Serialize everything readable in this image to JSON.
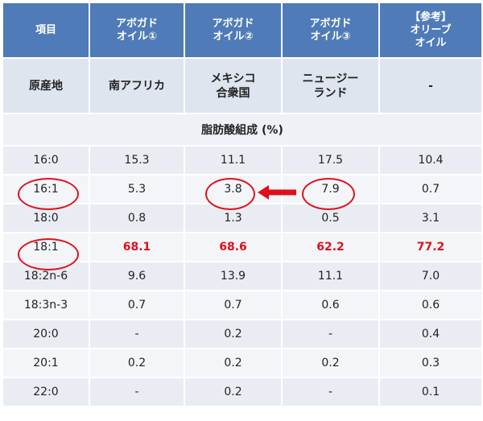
{
  "headers": {
    "item": "項目",
    "c1": [
      "アボガド",
      "オイル①"
    ],
    "c2": [
      "アボガド",
      "オイル②"
    ],
    "c3": [
      "アボガド",
      "オイル③"
    ],
    "c4": [
      "【参考】",
      "オリーブ",
      "オイル"
    ]
  },
  "origin": {
    "label": "原産地",
    "c1": "南アフリカ",
    "c2": [
      "メキシコ",
      "合衆国"
    ],
    "c3": [
      "ニュージー",
      "ランド"
    ],
    "c4": "-"
  },
  "section_label": "脂肪酸組成 (%)",
  "rows": [
    {
      "label": "16:0",
      "v": [
        "15.3",
        "11.1",
        "17.5",
        "10.4"
      ]
    },
    {
      "label": "16:1",
      "v": [
        "5.3",
        "3.8",
        "7.9",
        "0.7"
      ]
    },
    {
      "label": "18:0",
      "v": [
        "0.8",
        "1.3",
        "0.5",
        "3.1"
      ]
    },
    {
      "label": "18:1",
      "v": [
        "68.1",
        "68.6",
        "62.2",
        "77.2"
      ]
    },
    {
      "label": "18:2n-6",
      "v": [
        "9.6",
        "13.9",
        "11.1",
        "7.0"
      ]
    },
    {
      "label": "18:3n-3",
      "v": [
        "0.7",
        "0.7",
        "0.6",
        "0.6"
      ]
    },
    {
      "label": "20:0",
      "v": [
        "-",
        "0.2",
        "-",
        "0.4"
      ]
    },
    {
      "label": "20:1",
      "v": [
        "0.2",
        "0.2",
        "0.2",
        "0.3"
      ]
    },
    {
      "label": "22:0",
      "v": [
        "-",
        "0.2",
        "-",
        "0.1"
      ]
    }
  ],
  "colors": {
    "header_bg": "#4f7bb8",
    "highlight": "#e0101a"
  }
}
